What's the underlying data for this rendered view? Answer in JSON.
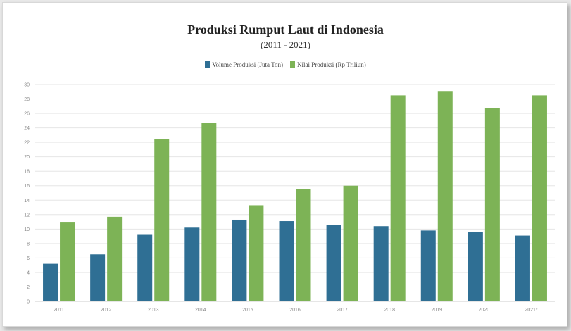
{
  "chart_data": {
    "type": "bar",
    "title": "Produksi Rumput Laut di Indonesia",
    "subtitle": "(2011 - 2021)",
    "categories": [
      "2011",
      "2012",
      "2013",
      "2014",
      "2015",
      "2016",
      "2017",
      "2018",
      "2019",
      "2020",
      "2021*"
    ],
    "series": [
      {
        "name": "Volume Produksi (Juta Ton)",
        "color": "#2f6f94",
        "values": [
          5.2,
          6.5,
          9.3,
          10.2,
          11.3,
          11.1,
          10.6,
          10.4,
          9.8,
          9.6,
          9.1
        ]
      },
      {
        "name": "Nilai Produksi (Rp Triliun)",
        "color": "#7db356",
        "values": [
          11.0,
          11.7,
          22.5,
          24.7,
          13.3,
          15.5,
          16.0,
          28.5,
          29.1,
          26.7,
          28.5
        ]
      }
    ],
    "yticks": [
      "0",
      "2",
      "4",
      "6",
      "8",
      "10",
      "12",
      "14",
      "16",
      "18",
      "20",
      "22",
      "24",
      "26",
      "28",
      "30"
    ],
    "ylim": [
      0,
      30
    ],
    "grid": true,
    "legend_position": "top-center"
  }
}
